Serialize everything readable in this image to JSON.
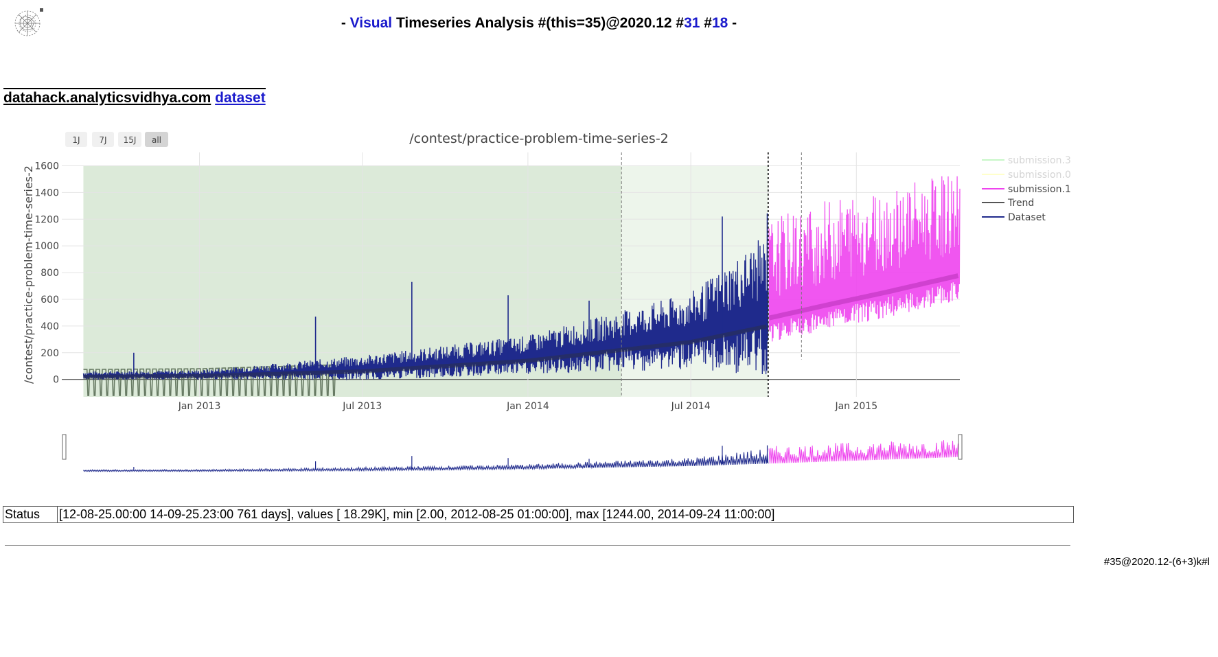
{
  "header": {
    "prefix": "- ",
    "visual": "Visual",
    "middle": " Timeseries Analysis #(this=35)@2020.12 #",
    "link1": "31",
    "sep": " #",
    "link2": "18",
    "suffix": " -"
  },
  "dataset_link": {
    "site": "datahack.analyticsvidhya.com",
    "word": "dataset"
  },
  "range_buttons": [
    "1J",
    "7J",
    "15J",
    "all"
  ],
  "active_range": "all",
  "chart_data": {
    "type": "line",
    "title": "/contest/practice-problem-time-series-2",
    "ylabel": "/contest/practice-problem-time-series-2",
    "xlabel": "",
    "ylim": [
      -130,
      1700
    ],
    "yticks": [
      0,
      200,
      400,
      600,
      800,
      1000,
      1200,
      1400,
      1600
    ],
    "xticks": [
      {
        "date": "2013-01-01",
        "label": "Jan 2013"
      },
      {
        "date": "2013-07-01",
        "label": "Jul 2013"
      },
      {
        "date": "2014-01-01",
        "label": "Jan 2014"
      },
      {
        "date": "2014-07-01",
        "label": "Jul 2014"
      },
      {
        "date": "2015-01-01",
        "label": "Jan 2015"
      }
    ],
    "x_range": [
      "2012-08-01",
      "2015-04-26"
    ],
    "training_region": {
      "start": "2012-08-25",
      "end": "2014-04-15",
      "color": "#dcead9"
    },
    "validation_region": {
      "start": "2014-04-15",
      "end": "2014-09-25",
      "color": "#edf5eb"
    },
    "markers": [
      {
        "date": "2014-04-15",
        "style": "dashed"
      },
      {
        "date": "2014-09-25",
        "style": "dotted-bold"
      },
      {
        "date": "2014-11-01",
        "style": "dashed"
      }
    ],
    "series": [
      {
        "name": "submission.3",
        "color": "#90ee90",
        "visible": false,
        "start": "2014-09-26",
        "end": "2015-04-26",
        "trend": [],
        "envelope": []
      },
      {
        "name": "submission.0",
        "color": "#ffff99",
        "visible": false,
        "start": "2014-09-26",
        "end": "2015-04-26",
        "trend": [],
        "envelope": []
      },
      {
        "name": "submission.1",
        "color": "#ee44ee",
        "visible": true,
        "start": "2014-09-26",
        "end": "2015-04-26",
        "trend": [
          [
            "2014-09-26",
            460
          ],
          [
            "2014-12-01",
            560
          ],
          [
            "2015-02-01",
            650
          ],
          [
            "2015-04-26",
            780
          ]
        ],
        "envelope": [
          [
            "2014-09-26",
            1200
          ],
          [
            "2014-12-01",
            1350
          ],
          [
            "2015-02-01",
            1450
          ],
          [
            "2015-04-26",
            1550
          ]
        ]
      },
      {
        "name": "Trend",
        "color": "#555555",
        "visible": true,
        "start": "2012-08-25",
        "end": "2014-09-25",
        "trend": [
          [
            "2012-08-25",
            20
          ],
          [
            "2013-01-01",
            25
          ],
          [
            "2013-07-01",
            60
          ],
          [
            "2014-01-01",
            140
          ],
          [
            "2014-07-01",
            280
          ],
          [
            "2014-09-25",
            400
          ]
        ],
        "envelope": []
      },
      {
        "name": "Dataset",
        "color": "#1f2a8c",
        "visible": true,
        "start": "2012-08-25",
        "end": "2014-09-25",
        "trend": [
          [
            "2012-08-25",
            20
          ],
          [
            "2013-01-01",
            25
          ],
          [
            "2013-07-01",
            60
          ],
          [
            "2014-01-01",
            140
          ],
          [
            "2014-07-01",
            280
          ],
          [
            "2014-09-25",
            400
          ]
        ],
        "envelope": [
          [
            "2012-08-25",
            60
          ],
          [
            "2013-01-01",
            70
          ],
          [
            "2013-07-01",
            180
          ],
          [
            "2014-01-01",
            330
          ],
          [
            "2014-07-01",
            650
          ],
          [
            "2014-09-25",
            1100
          ]
        ],
        "peaks": [
          [
            "2012-10-20",
            200
          ],
          [
            "2013-05-10",
            470
          ],
          [
            "2013-08-25",
            730
          ],
          [
            "2013-12-10",
            630
          ],
          [
            "2014-03-10",
            590
          ],
          [
            "2014-08-05",
            1220
          ],
          [
            "2014-09-24",
            1244
          ]
        ]
      }
    ],
    "legend": {
      "placement": "right",
      "entries": [
        "submission.3",
        "submission.0",
        "submission.1",
        "Trend",
        "Dataset"
      ]
    },
    "grid": true
  },
  "status": {
    "label": "Status",
    "text": "[12-08-25.00:00 14-09-25.23:00 761 days], values [ 18.29K], min [2.00, 2012-08-25 01:00:00], max [1244.00, 2014-09-24 11:00:00]"
  },
  "footer": "#35@2020.12-(6+3)k#l"
}
